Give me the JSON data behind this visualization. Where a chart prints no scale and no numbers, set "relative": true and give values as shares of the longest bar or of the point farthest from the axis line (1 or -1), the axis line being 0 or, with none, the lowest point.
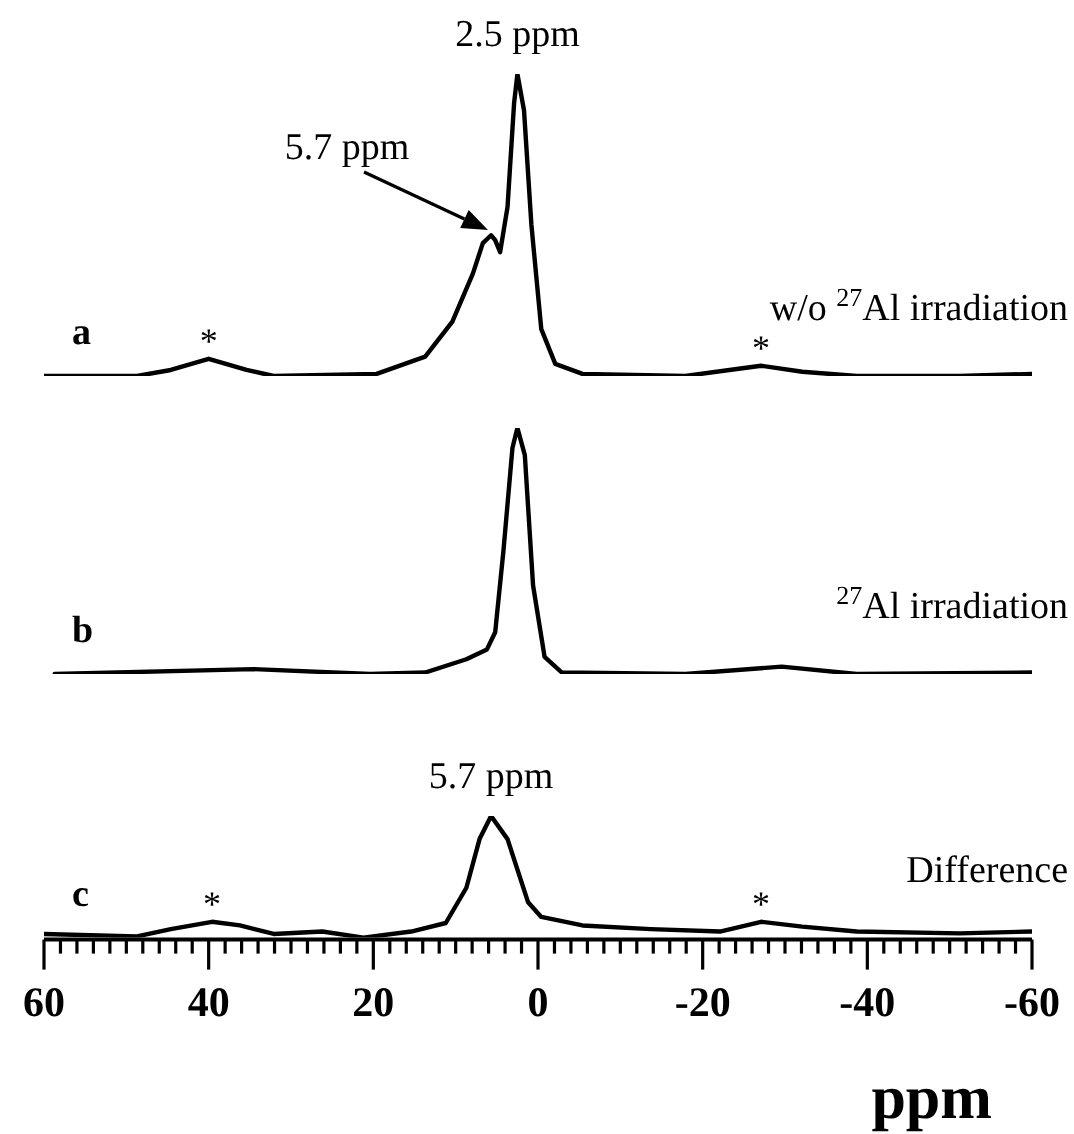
{
  "chart_data": [
    {
      "type": "line",
      "relative": true,
      "tick_labels": false,
      "xlim": [
        60,
        -60
      ],
      "x": [
        60,
        48.7,
        44.6,
        40,
        35.4,
        32.1,
        19.6,
        13.7,
        10.4,
        7.9,
        6.7,
        5.7,
        5.2,
        4.6,
        3.7,
        2.9,
        2.5,
        1.7,
        0.8,
        -0.4,
        -2.1,
        -5.4,
        -17.9,
        -24.6,
        -27.1,
        -32.1,
        -38.7,
        -51.2,
        -60
      ],
      "series": [
        {
          "color": "#000000",
          "values": [
            0,
            0,
            0.02,
            0.057,
            0.02,
            0,
            0.007,
            0.064,
            0.18,
            0.34,
            0.44,
            0.466,
            0.45,
            0.41,
            0.56,
            0.905,
            1,
            0.88,
            0.5,
            0.155,
            0.04,
            0.007,
            0,
            0.025,
            0.034,
            0.014,
            0,
            0,
            0.007
          ]
        }
      ],
      "annotations": [
        "a",
        "w/o $^{27}$Al irradiation",
        {
          "text": "*",
          "x": 40,
          "y": 0.057
        },
        {
          "text": "*",
          "x": -27.1,
          "y": 0.034
        },
        {
          "text": "2.5 ppm",
          "x": 2.5,
          "y": 1
        },
        {
          "text": "5.7 ppm",
          "x": 5.7,
          "y": 0.466
        }
      ]
    },
    {
      "type": "line",
      "relative": true,
      "tick_labels": false,
      "xlim": [
        60,
        -60
      ],
      "x": [
        58.7,
        34.6,
        20.4,
        13.7,
        8.7,
        6.2,
        5.2,
        4.2,
        3.1,
        2.5,
        1.6,
        0.6,
        -0.8,
        -2.9,
        -17.9,
        -29.6,
        -38.7,
        -60
      ],
      "series": [
        {
          "color": "#000000",
          "values": [
            0,
            0.02,
            0,
            0.006,
            0.06,
            0.1,
            0.17,
            0.5,
            0.92,
            1,
            0.89,
            0.36,
            0.07,
            0.006,
            0,
            0.03,
            0,
            0.006
          ]
        }
      ],
      "annotations": [
        "b",
        "$^{27}$Al irradiation"
      ]
    },
    {
      "type": "line",
      "relative": true,
      "xlim": [
        60,
        -60
      ],
      "xlabel": "ppm",
      "xticks": [
        60,
        {
          "value": 58,
          "label": null
        },
        {
          "value": 56,
          "label": null
        },
        {
          "value": 54,
          "label": null
        },
        {
          "value": 52,
          "label": null
        },
        {
          "value": 50,
          "label": null
        },
        {
          "value": 48,
          "label": null
        },
        {
          "value": 46,
          "label": null
        },
        {
          "value": 44,
          "label": null
        },
        {
          "value": 42,
          "label": null
        },
        40,
        {
          "value": 38,
          "label": null
        },
        {
          "value": 36,
          "label": null
        },
        {
          "value": 34,
          "label": null
        },
        {
          "value": 32,
          "label": null
        },
        {
          "value": 30,
          "label": null
        },
        {
          "value": 28,
          "label": null
        },
        {
          "value": 26,
          "label": null
        },
        {
          "value": 24,
          "label": null
        },
        {
          "value": 22,
          "label": null
        },
        20,
        {
          "value": 18,
          "label": null
        },
        {
          "value": 16,
          "label": null
        },
        {
          "value": 14,
          "label": null
        },
        {
          "value": 12,
          "label": null
        },
        {
          "value": 10,
          "label": null
        },
        {
          "value": 8,
          "label": null
        },
        {
          "value": 6,
          "label": null
        },
        {
          "value": 4,
          "label": null
        },
        {
          "value": 2,
          "label": null
        },
        0,
        {
          "value": -2,
          "label": null
        },
        {
          "value": -4,
          "label": null
        },
        {
          "value": -6,
          "label": null
        },
        {
          "value": -8,
          "label": null
        },
        {
          "value": -10,
          "label": null
        },
        {
          "value": -12,
          "label": null
        },
        {
          "value": -14,
          "label": null
        },
        {
          "value": -16,
          "label": null
        },
        {
          "value": -18,
          "label": null
        },
        -20,
        {
          "value": -22,
          "label": null
        },
        {
          "value": -24,
          "label": null
        },
        {
          "value": -26,
          "label": null
        },
        {
          "value": -28,
          "label": null
        },
        {
          "value": -30,
          "label": null
        },
        {
          "value": -32,
          "label": null
        },
        {
          "value": -34,
          "label": null
        },
        {
          "value": -36,
          "label": null
        },
        {
          "value": -38,
          "label": null
        },
        -40,
        {
          "value": -42,
          "label": null
        },
        {
          "value": -44,
          "label": null
        },
        {
          "value": -46,
          "label": null
        },
        {
          "value": -48,
          "label": null
        },
        {
          "value": -50,
          "label": null
        },
        {
          "value": -52,
          "label": null
        },
        {
          "value": -54,
          "label": null
        },
        {
          "value": -56,
          "label": null
        },
        {
          "value": -58,
          "label": null
        },
        -60
      ],
      "x": [
        60,
        48.7,
        44.6,
        39.6,
        36.2,
        32.1,
        26.2,
        21.2,
        15.4,
        11.2,
        8.7,
        7.1,
        5.7,
        3.7,
        1.2,
        -0.4,
        -5.4,
        -13.7,
        -22.1,
        -27.1,
        -32.1,
        -38.7,
        -51.2,
        -60
      ],
      "series": [
        {
          "color": "#000000",
          "values": [
            0.03,
            0.01,
            0.07,
            0.13,
            0.1,
            0.03,
            0.05,
            0,
            0.05,
            0.12,
            0.41,
            0.81,
            1,
            0.81,
            0.29,
            0.17,
            0.1,
            0.07,
            0.05,
            0.13,
            0.09,
            0.05,
            0.035,
            0.05
          ]
        }
      ],
      "annotations": [
        "c",
        "Difference",
        {
          "text": "*",
          "x": 39.6,
          "y": 0.13
        },
        {
          "text": "*",
          "x": -27.1,
          "y": 0.13
        },
        {
          "text": "5.7 ppm",
          "x": 5.7,
          "y": 1
        }
      ]
    }
  ]
}
